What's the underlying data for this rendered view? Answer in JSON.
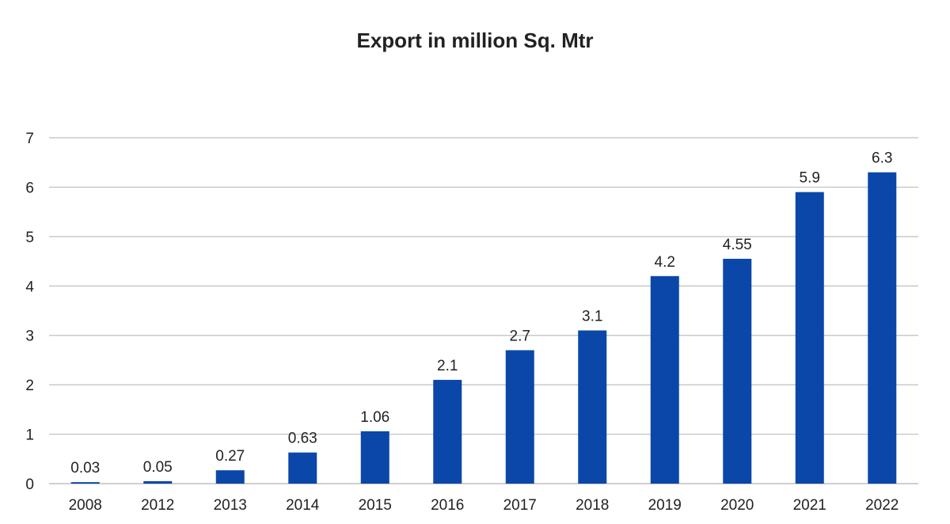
{
  "chart_data": {
    "type": "bar",
    "title": "Export in million Sq. Mtr",
    "xlabel": "",
    "ylabel": "",
    "categories": [
      "2008",
      "2012",
      "2013",
      "2014",
      "2015",
      "2016",
      "2017",
      "2018",
      "2019",
      "2020",
      "2021",
      "2022"
    ],
    "values": [
      0.03,
      0.05,
      0.27,
      0.63,
      1.06,
      2.1,
      2.7,
      3.1,
      4.2,
      4.55,
      5.9,
      6.3
    ],
    "value_labels": [
      "0.03",
      "0.05",
      "0.27",
      "0.63",
      "1.06",
      "2.1",
      "2.7",
      "3.1",
      "4.2",
      "4.55",
      "5.9",
      "6.3"
    ],
    "ylim": [
      0,
      7
    ],
    "yticks": [
      0,
      1,
      2,
      3,
      4,
      5,
      6,
      7
    ],
    "grid": true,
    "legend": "none",
    "bar_color": "#0a47a9"
  }
}
